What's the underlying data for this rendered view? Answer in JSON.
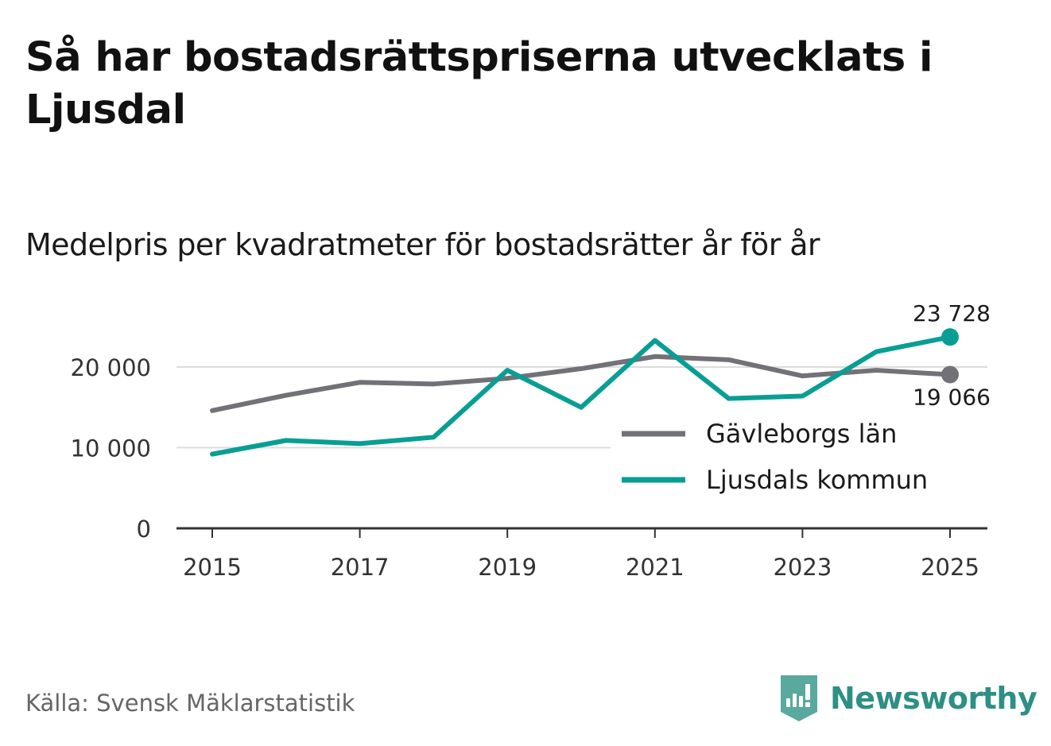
{
  "title": "Så har bostadsrättspriserna utvecklats i Ljusdal",
  "subtitle": "Medelpris per kvadratmeter för bostadsrätter år för år",
  "source": "Källa: Svensk Mäklarstatistik",
  "brand": {
    "name": "Newsworthy",
    "icon": "newsworthy-logo-icon",
    "color": "#2e8f85"
  },
  "chart_data": {
    "type": "line",
    "title": "Så har bostadsrättspriserna utvecklats i Ljusdal",
    "subtitle": "Medelpris per kvadratmeter för bostadsrätter år för år",
    "xlabel": "",
    "ylabel": "",
    "x": [
      2015,
      2016,
      2017,
      2018,
      2019,
      2020,
      2021,
      2022,
      2023,
      2024,
      2025
    ],
    "xticks": [
      "2015",
      "2017",
      "2019",
      "2021",
      "2023",
      "2025"
    ],
    "yticks": [
      0,
      10000,
      20000
    ],
    "ytick_labels": [
      "0",
      "10 000",
      "20 000"
    ],
    "ylim": [
      0,
      24000
    ],
    "grid": true,
    "legend_position": "center-right",
    "series": [
      {
        "name": "Gävleborgs län",
        "color": "#737178",
        "values": [
          14600,
          16500,
          18100,
          17900,
          18600,
          19800,
          21300,
          20900,
          18900,
          19600,
          19066
        ],
        "end_label": "19 066"
      },
      {
        "name": "Ljusdals kommun",
        "color": "#089e94",
        "values": [
          9200,
          10900,
          10500,
          11300,
          19600,
          15000,
          23300,
          16100,
          16400,
          21900,
          23728
        ],
        "end_label": "23 728"
      }
    ]
  }
}
